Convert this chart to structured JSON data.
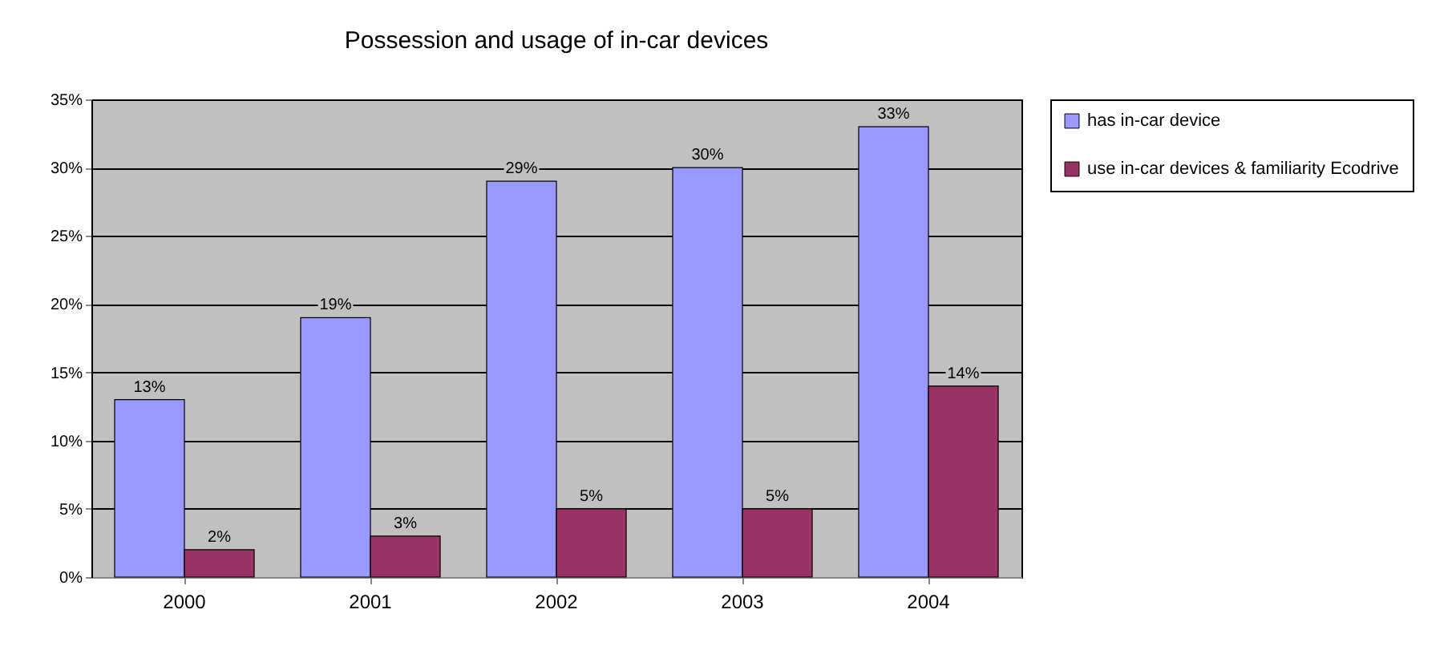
{
  "chart_data": {
    "type": "bar",
    "title": "Possession and usage of in-car devices",
    "categories": [
      "2000",
      "2001",
      "2002",
      "2003",
      "2004"
    ],
    "series": [
      {
        "name": "has in-car device",
        "color": "#9999ff",
        "values": [
          13,
          19,
          29,
          30,
          33
        ],
        "value_labels": [
          "13%",
          "19%",
          "29%",
          "30%",
          "33%"
        ]
      },
      {
        "name": "use in-car devices & familiarity Ecodrive",
        "color": "#993366",
        "values": [
          2,
          3,
          5,
          5,
          14
        ],
        "value_labels": [
          "2%",
          "3%",
          "5%",
          "5%",
          "14%"
        ]
      }
    ],
    "ylim": [
      0,
      35
    ],
    "yticks": [
      {
        "value": 0,
        "label": "0%"
      },
      {
        "value": 5,
        "label": "5%"
      },
      {
        "value": 10,
        "label": "10%"
      },
      {
        "value": 15,
        "label": "15%"
      },
      {
        "value": 20,
        "label": "20%"
      },
      {
        "value": 25,
        "label": "25%"
      },
      {
        "value": 30,
        "label": "30%"
      },
      {
        "value": 35,
        "label": "35%"
      }
    ],
    "grid": "y",
    "legend": "right"
  }
}
